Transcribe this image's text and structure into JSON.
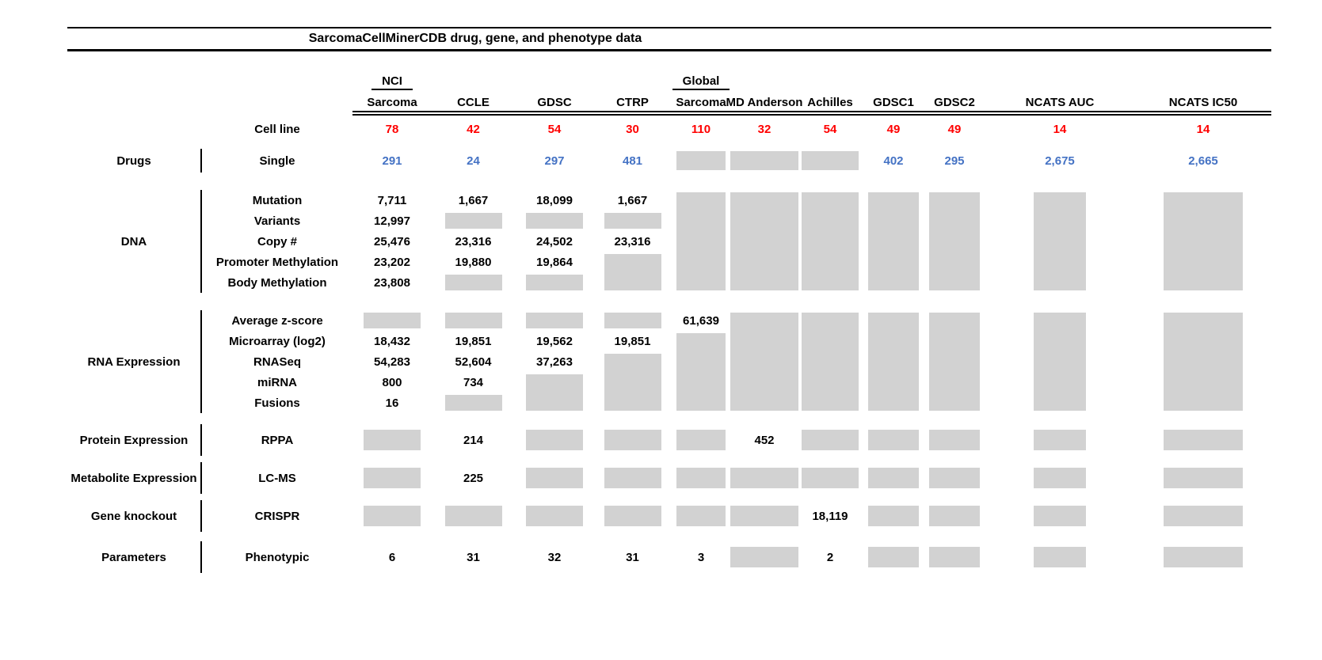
{
  "title": "SarcomaCellMinerCDB drug, gene, and phenotype data",
  "cell_line_row_label": "Cell line",
  "colors": {
    "red": "#FF0000",
    "blue": "#4472C4",
    "gray_box": "#D2D2D2",
    "rule": "#000000"
  },
  "legend_note": "gray box = data not available",
  "columns": [
    {
      "header_top": "NCI",
      "header": "Sarcoma",
      "cell_lines": "78"
    },
    {
      "header": "CCLE",
      "cell_lines": "42"
    },
    {
      "header": "GDSC",
      "cell_lines": "54"
    },
    {
      "header": "CTRP",
      "cell_lines": "30"
    },
    {
      "header_top": "Global",
      "header": "Sarcoma",
      "cell_lines": "110"
    },
    {
      "header": "MD Anderson",
      "cell_lines": "32"
    },
    {
      "header": "Achilles",
      "cell_lines": "54"
    },
    {
      "header": "GDSC1",
      "cell_lines": "49"
    },
    {
      "header": "GDSC2",
      "cell_lines": "49"
    },
    {
      "header": "NCATS AUC",
      "cell_lines": "14"
    },
    {
      "header": "NCATS IC50",
      "cell_lines": "14"
    }
  ],
  "groups": [
    {
      "category": "Drugs",
      "rows": [
        {
          "label": "Single",
          "color": "blue",
          "cells": [
            "291",
            "24",
            "297",
            "481",
            "G",
            "G",
            "G",
            "402",
            "295",
            "2,675",
            "2,665"
          ]
        }
      ]
    },
    {
      "category": "DNA",
      "rows": [
        {
          "label": "Mutation",
          "cells": [
            "7,711",
            "1,667",
            "18,099",
            "1,667",
            "G5",
            "G5",
            "G5",
            "G5",
            "G5",
            "G5",
            "G5"
          ]
        },
        {
          "label": "Variants",
          "cells": [
            "12,997",
            "G",
            "G",
            "G",
            "",
            "",
            "",
            "",
            "",
            "",
            ""
          ]
        },
        {
          "label": "Copy #",
          "cells": [
            "25,476",
            "23,316",
            "24,502",
            "23,316",
            "",
            "",
            "",
            "",
            "",
            "",
            ""
          ]
        },
        {
          "label": "Promoter Methylation",
          "cells": [
            "23,202",
            "19,880",
            "19,864",
            "G2",
            "",
            "",
            "",
            "",
            "",
            "",
            ""
          ]
        },
        {
          "label": "Body Methylation",
          "cells": [
            "23,808",
            "G",
            "G",
            "",
            "",
            "",
            "",
            "",
            "",
            "",
            ""
          ]
        }
      ]
    },
    {
      "category": "RNA Expression",
      "rows": [
        {
          "label": "Average z-score",
          "cells": [
            "G",
            "G",
            "G",
            "G",
            "61,639",
            "G5",
            "G5",
            "G5",
            "G5",
            "G5",
            "G5"
          ]
        },
        {
          "label": "Microarray (log2)",
          "cells": [
            "18,432",
            "19,851",
            "19,562",
            "19,851",
            "G4",
            "",
            "",
            "",
            "",
            "",
            ""
          ]
        },
        {
          "label": "RNASeq",
          "cells": [
            "54,283",
            "52,604",
            "37,263",
            "G3",
            "",
            "",
            "",
            "",
            "",
            "",
            ""
          ]
        },
        {
          "label": "miRNA",
          "cells": [
            "800",
            "734",
            "G2",
            "",
            "",
            "",
            "",
            "",
            "",
            "",
            ""
          ]
        },
        {
          "label": "Fusions",
          "cells": [
            "16",
            "G",
            "",
            "",
            "",
            "",
            "",
            "",
            "",
            "",
            ""
          ]
        }
      ]
    },
    {
      "category": "Protein Expression",
      "rows": [
        {
          "label": "RPPA",
          "cells": [
            "G",
            "214",
            "G",
            "G",
            "G",
            "452",
            "G",
            "G",
            "G",
            "G",
            "G"
          ]
        }
      ]
    },
    {
      "category": "Metabolite Expression",
      "rows": [
        {
          "label": "LC-MS",
          "cells": [
            "G",
            "225",
            "G",
            "G",
            "G",
            "G",
            "G",
            "G",
            "G",
            "G",
            "G"
          ]
        }
      ]
    },
    {
      "category": "Gene knockout",
      "rows": [
        {
          "label": "CRISPR",
          "cells": [
            "G",
            "G",
            "G",
            "G",
            "G",
            "G",
            "18,119",
            "G",
            "G",
            "G",
            "G"
          ]
        }
      ]
    },
    {
      "category": "Parameters",
      "rows": [
        {
          "label": "Phenotypic",
          "cells": [
            "6",
            "31",
            "32",
            "31",
            "3",
            "G",
            "2",
            "G",
            "G",
            "G",
            "G"
          ]
        }
      ]
    }
  ],
  "chart_data": {
    "type": "table",
    "title": "SarcomaCellMinerCDB drug, gene, and phenotype data",
    "columns": [
      "NCI Sarcoma",
      "CCLE",
      "GDSC",
      "CTRP",
      "Global Sarcoma",
      "MD Anderson",
      "Achilles",
      "GDSC1",
      "GDSC2",
      "NCATS AUC",
      "NCATS IC50"
    ],
    "value_encoding": "null = gray box (data not available)",
    "rows": [
      {
        "group": "",
        "label": "Cell line",
        "values": [
          78,
          42,
          54,
          30,
          110,
          32,
          54,
          49,
          49,
          14,
          14
        ]
      },
      {
        "group": "Drugs",
        "label": "Single",
        "values": [
          291,
          24,
          297,
          481,
          null,
          null,
          null,
          402,
          295,
          2675,
          2665
        ]
      },
      {
        "group": "DNA",
        "label": "Mutation",
        "values": [
          7711,
          1667,
          18099,
          1667,
          null,
          null,
          null,
          null,
          null,
          null,
          null
        ]
      },
      {
        "group": "DNA",
        "label": "Variants",
        "values": [
          12997,
          null,
          null,
          null,
          null,
          null,
          null,
          null,
          null,
          null,
          null
        ]
      },
      {
        "group": "DNA",
        "label": "Copy #",
        "values": [
          25476,
          23316,
          24502,
          23316,
          null,
          null,
          null,
          null,
          null,
          null,
          null
        ]
      },
      {
        "group": "DNA",
        "label": "Promoter Methylation",
        "values": [
          23202,
          19880,
          19864,
          null,
          null,
          null,
          null,
          null,
          null,
          null,
          null
        ]
      },
      {
        "group": "DNA",
        "label": "Body Methylation",
        "values": [
          23808,
          null,
          null,
          null,
          null,
          null,
          null,
          null,
          null,
          null,
          null
        ]
      },
      {
        "group": "RNA Expression",
        "label": "Average z-score",
        "values": [
          null,
          null,
          null,
          null,
          61639,
          null,
          null,
          null,
          null,
          null,
          null
        ]
      },
      {
        "group": "RNA Expression",
        "label": "Microarray (log2)",
        "values": [
          18432,
          19851,
          19562,
          19851,
          null,
          null,
          null,
          null,
          null,
          null,
          null
        ]
      },
      {
        "group": "RNA Expression",
        "label": "RNASeq",
        "values": [
          54283,
          52604,
          37263,
          null,
          null,
          null,
          null,
          null,
          null,
          null,
          null
        ]
      },
      {
        "group": "RNA Expression",
        "label": "miRNA",
        "values": [
          800,
          734,
          null,
          null,
          null,
          null,
          null,
          null,
          null,
          null,
          null
        ]
      },
      {
        "group": "RNA Expression",
        "label": "Fusions",
        "values": [
          16,
          null,
          null,
          null,
          null,
          null,
          null,
          null,
          null,
          null,
          null
        ]
      },
      {
        "group": "Protein Expression",
        "label": "RPPA",
        "values": [
          null,
          214,
          null,
          null,
          null,
          452,
          null,
          null,
          null,
          null,
          null
        ]
      },
      {
        "group": "Metabolite Expression",
        "label": "LC-MS",
        "values": [
          null,
          225,
          null,
          null,
          null,
          null,
          null,
          null,
          null,
          null,
          null
        ]
      },
      {
        "group": "Gene knockout",
        "label": "CRISPR",
        "values": [
          null,
          null,
          null,
          null,
          null,
          null,
          18119,
          null,
          null,
          null,
          null
        ]
      },
      {
        "group": "Parameters",
        "label": "Phenotypic",
        "values": [
          6,
          31,
          32,
          31,
          3,
          null,
          2,
          null,
          null,
          null,
          null
        ]
      }
    ]
  }
}
